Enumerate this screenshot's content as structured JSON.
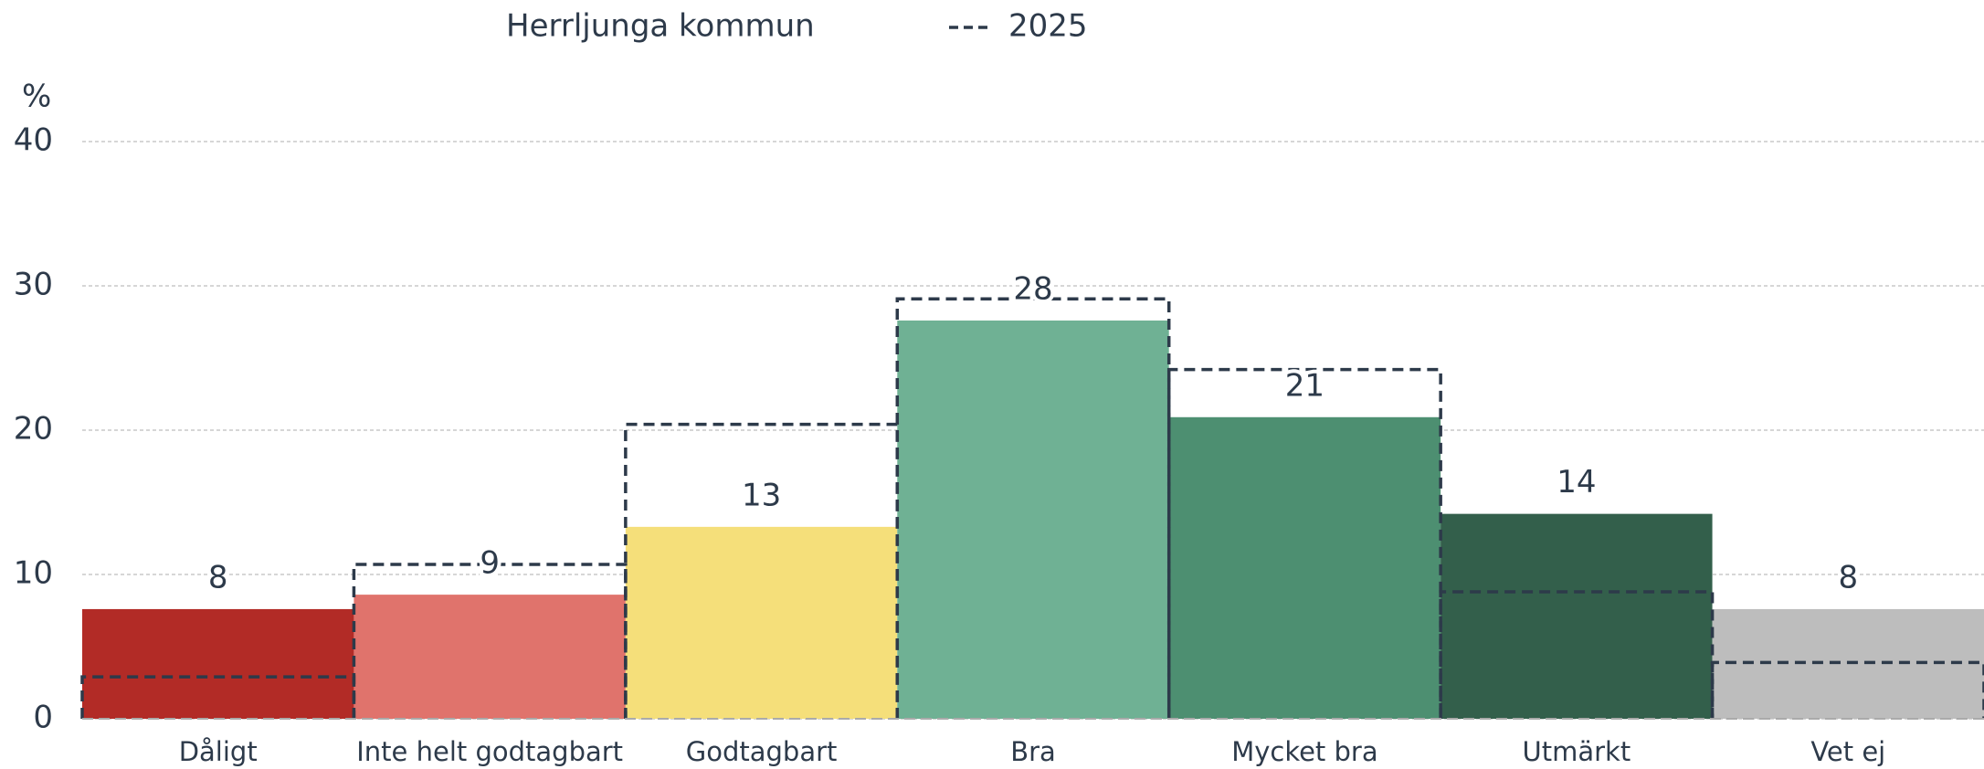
{
  "chart_data": {
    "type": "bar",
    "y_label": "%",
    "categories": [
      "Dåligt",
      "Inte helt godtagbart",
      "Godtagbart",
      "Bra",
      "Mycket bra",
      "Utmärkt",
      "Vet ej"
    ],
    "series": [
      {
        "name": "Herrljunga kommun",
        "colors": [
          "#b22b26",
          "#e0736c",
          "#f5df7a",
          "#6fb194",
          "#4d8f71",
          "#335f4b",
          "#bdbdbd"
        ],
        "values": [
          7.6,
          8.6,
          13.3,
          27.6,
          20.9,
          14.2,
          7.6
        ],
        "value_labels": [
          "8",
          "9",
          "13",
          "28",
          "21",
          "14",
          "8"
        ]
      },
      {
        "name": "2025",
        "color": "#2d3a4a",
        "style": "dashed",
        "values": [
          2.9,
          10.7,
          20.4,
          29.1,
          24.2,
          8.8,
          3.9
        ]
      }
    ],
    "ylim": [
      0,
      40
    ],
    "yticks": [
      0,
      10,
      20,
      30,
      40
    ],
    "grid": true
  }
}
